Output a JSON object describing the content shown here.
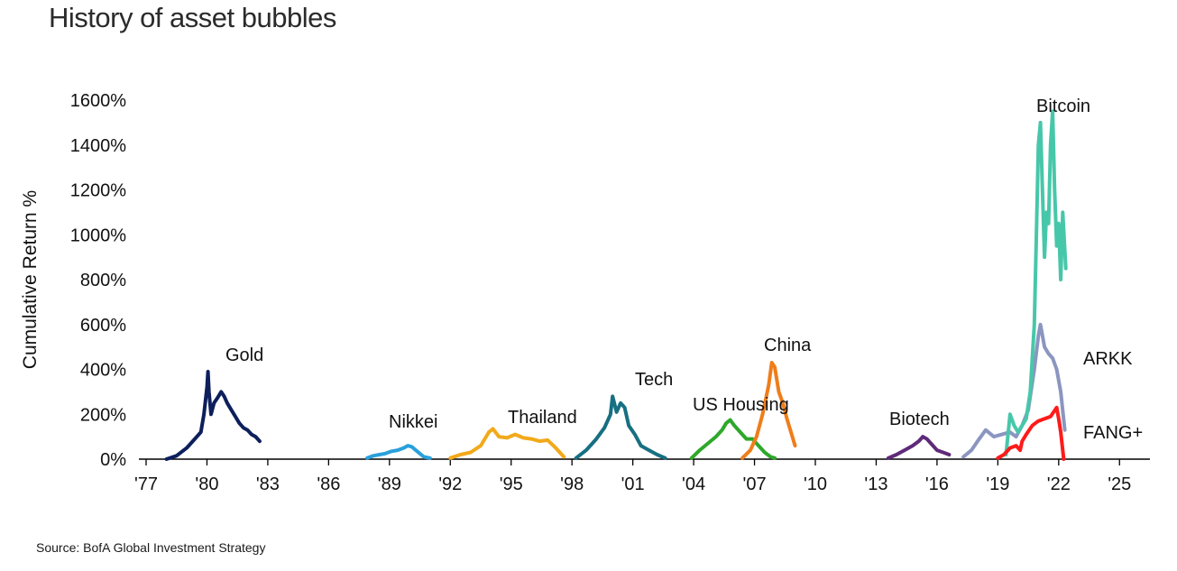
{
  "title": "History of asset bubbles",
  "source": "Source: BofA Global Investment Strategy",
  "colors": {
    "text": "#111111",
    "axis": "#000000",
    "gold": "#0d1f5c",
    "nikkei": "#2aa0db",
    "thailand": "#f2a91a",
    "tech": "#176f82",
    "us_housing": "#2ea82a",
    "china": "#ef7d1a",
    "biotech": "#5e2a79",
    "bitcoin": "#47c7a9",
    "arkk": "#8b96c0",
    "fang": "#ff1a1a"
  },
  "chart_data": {
    "type": "line",
    "title": "History of asset bubbles",
    "xlabel": "",
    "ylabel": "Cumulative Return %",
    "xlim": [
      1977,
      2026.5
    ],
    "ylim": [
      0,
      1600
    ],
    "x_ticks": [
      1977,
      1980,
      1983,
      1986,
      1989,
      1992,
      1995,
      1998,
      2001,
      2004,
      2007,
      2010,
      2013,
      2016,
      2019,
      2022,
      2025
    ],
    "x_tick_labels": [
      "'77",
      "'80",
      "'83",
      "'86",
      "'89",
      "'92",
      "'95",
      "'98",
      "'01",
      "'04",
      "'07",
      "'10",
      "'13",
      "'16",
      "'19",
      "'22",
      "'25"
    ],
    "y_ticks": [
      0,
      200,
      400,
      600,
      800,
      1000,
      1200,
      1400,
      1600
    ],
    "y_tick_labels": [
      "0%",
      "200%",
      "400%",
      "600%",
      "800%",
      "1000%",
      "1200%",
      "1400%",
      "1600%"
    ],
    "grid": false,
    "legend": "none (series labeled directly)",
    "series": [
      {
        "name": "Gold",
        "color_key": "gold",
        "x": [
          1978.0,
          1978.5,
          1979.0,
          1979.4,
          1979.7,
          1979.85,
          1980.0,
          1980.05,
          1980.1,
          1980.2,
          1980.35,
          1980.5,
          1980.7,
          1980.85,
          1981.0,
          1981.2,
          1981.4,
          1981.6,
          1981.8,
          1982.0,
          1982.2,
          1982.4,
          1982.6
        ],
        "values": [
          0,
          15,
          50,
          90,
          120,
          200,
          320,
          390,
          300,
          200,
          250,
          270,
          300,
          280,
          250,
          220,
          190,
          160,
          140,
          130,
          110,
          100,
          80
        ]
      },
      {
        "name": "Nikkei",
        "color_key": "nikkei",
        "x": [
          1987.9,
          1988.2,
          1988.5,
          1988.8,
          1989.1,
          1989.4,
          1989.7,
          1989.9,
          1990.1,
          1990.3,
          1990.5,
          1990.7,
          1991.0
        ],
        "values": [
          5,
          15,
          20,
          25,
          35,
          40,
          50,
          60,
          55,
          40,
          25,
          10,
          5
        ]
      },
      {
        "name": "Thailand",
        "color_key": "thailand",
        "x": [
          1992.0,
          1992.5,
          1993.0,
          1993.5,
          1993.9,
          1994.1,
          1994.4,
          1994.8,
          1995.2,
          1995.6,
          1996.0,
          1996.4,
          1996.8,
          1997.2,
          1997.6
        ],
        "values": [
          5,
          20,
          30,
          60,
          120,
          135,
          100,
          95,
          110,
          95,
          90,
          80,
          85,
          50,
          10
        ]
      },
      {
        "name": "Tech",
        "color_key": "tech",
        "x": [
          1998.2,
          1998.7,
          1999.2,
          1999.6,
          1999.9,
          2000.0,
          2000.2,
          2000.4,
          2000.6,
          2000.8,
          2001.1,
          2001.4,
          2001.8,
          2002.2,
          2002.6
        ],
        "values": [
          5,
          40,
          90,
          140,
          200,
          280,
          210,
          250,
          230,
          150,
          110,
          60,
          40,
          20,
          5
        ]
      },
      {
        "name": "US Housing",
        "color_key": "us_housing",
        "x": [
          2003.9,
          2004.3,
          2004.7,
          2005.1,
          2005.4,
          2005.6,
          2005.8,
          2006.0,
          2006.3,
          2006.6,
          2006.9,
          2007.2,
          2007.5,
          2007.8,
          2008.0
        ],
        "values": [
          5,
          40,
          70,
          100,
          130,
          160,
          175,
          150,
          120,
          90,
          90,
          60,
          30,
          10,
          5
        ]
      },
      {
        "name": "China",
        "color_key": "china",
        "x": [
          2006.4,
          2006.8,
          2007.1,
          2007.4,
          2007.7,
          2007.85,
          2008.0,
          2008.2,
          2008.4,
          2008.6,
          2008.8,
          2009.0
        ],
        "values": [
          5,
          40,
          100,
          200,
          330,
          430,
          410,
          300,
          250,
          180,
          120,
          60
        ]
      },
      {
        "name": "Biotech",
        "color_key": "biotech",
        "x": [
          2013.6,
          2014.0,
          2014.4,
          2014.8,
          2015.1,
          2015.3,
          2015.5,
          2015.7,
          2016.0,
          2016.3,
          2016.6
        ],
        "values": [
          5,
          20,
          40,
          60,
          80,
          100,
          90,
          70,
          40,
          30,
          20
        ]
      },
      {
        "name": "Bitcoin",
        "color_key": "bitcoin",
        "x": [
          2019.4,
          2019.6,
          2019.8,
          2020.0,
          2020.2,
          2020.4,
          2020.6,
          2020.8,
          2020.9,
          2021.0,
          2021.1,
          2021.2,
          2021.3,
          2021.4,
          2021.5,
          2021.6,
          2021.7,
          2021.8,
          2021.9,
          2022.0,
          2022.1,
          2022.2,
          2022.35
        ],
        "values": [
          20,
          200,
          150,
          120,
          150,
          180,
          300,
          600,
          1000,
          1400,
          1500,
          1200,
          900,
          1100,
          1050,
          1400,
          1550,
          1200,
          950,
          1050,
          800,
          1100,
          850
        ]
      },
      {
        "name": "ARKK",
        "color_key": "arkk",
        "x": [
          2017.3,
          2017.7,
          2018.0,
          2018.4,
          2018.8,
          2019.2,
          2019.6,
          2019.9,
          2020.2,
          2020.5,
          2020.8,
          2021.0,
          2021.1,
          2021.3,
          2021.5,
          2021.7,
          2021.9,
          2022.1,
          2022.3
        ],
        "values": [
          10,
          40,
          80,
          130,
          100,
          110,
          120,
          100,
          150,
          220,
          400,
          550,
          600,
          500,
          470,
          450,
          400,
          300,
          130
        ]
      },
      {
        "name": "FANG+",
        "color_key": "fang",
        "x": [
          2019.0,
          2019.3,
          2019.6,
          2019.9,
          2020.1,
          2020.2,
          2020.4,
          2020.7,
          2021.0,
          2021.3,
          2021.6,
          2021.9,
          2022.0,
          2022.1,
          2022.2,
          2022.25
        ],
        "values": [
          5,
          20,
          50,
          60,
          40,
          80,
          110,
          150,
          170,
          180,
          190,
          230,
          180,
          120,
          40,
          0
        ]
      }
    ],
    "annotations": [
      {
        "text": "Gold",
        "series": "Gold"
      },
      {
        "text": "Nikkei",
        "series": "Nikkei"
      },
      {
        "text": "Thailand",
        "series": "Thailand"
      },
      {
        "text": "Tech",
        "series": "Tech"
      },
      {
        "text": "US Housing",
        "series": "US Housing"
      },
      {
        "text": "China",
        "series": "China"
      },
      {
        "text": "Biotech",
        "series": "Biotech"
      },
      {
        "text": "Bitcoin",
        "series": "Bitcoin"
      },
      {
        "text": "ARKK",
        "series": "ARKK"
      },
      {
        "text": "FANG+",
        "series": "FANG+"
      }
    ]
  }
}
